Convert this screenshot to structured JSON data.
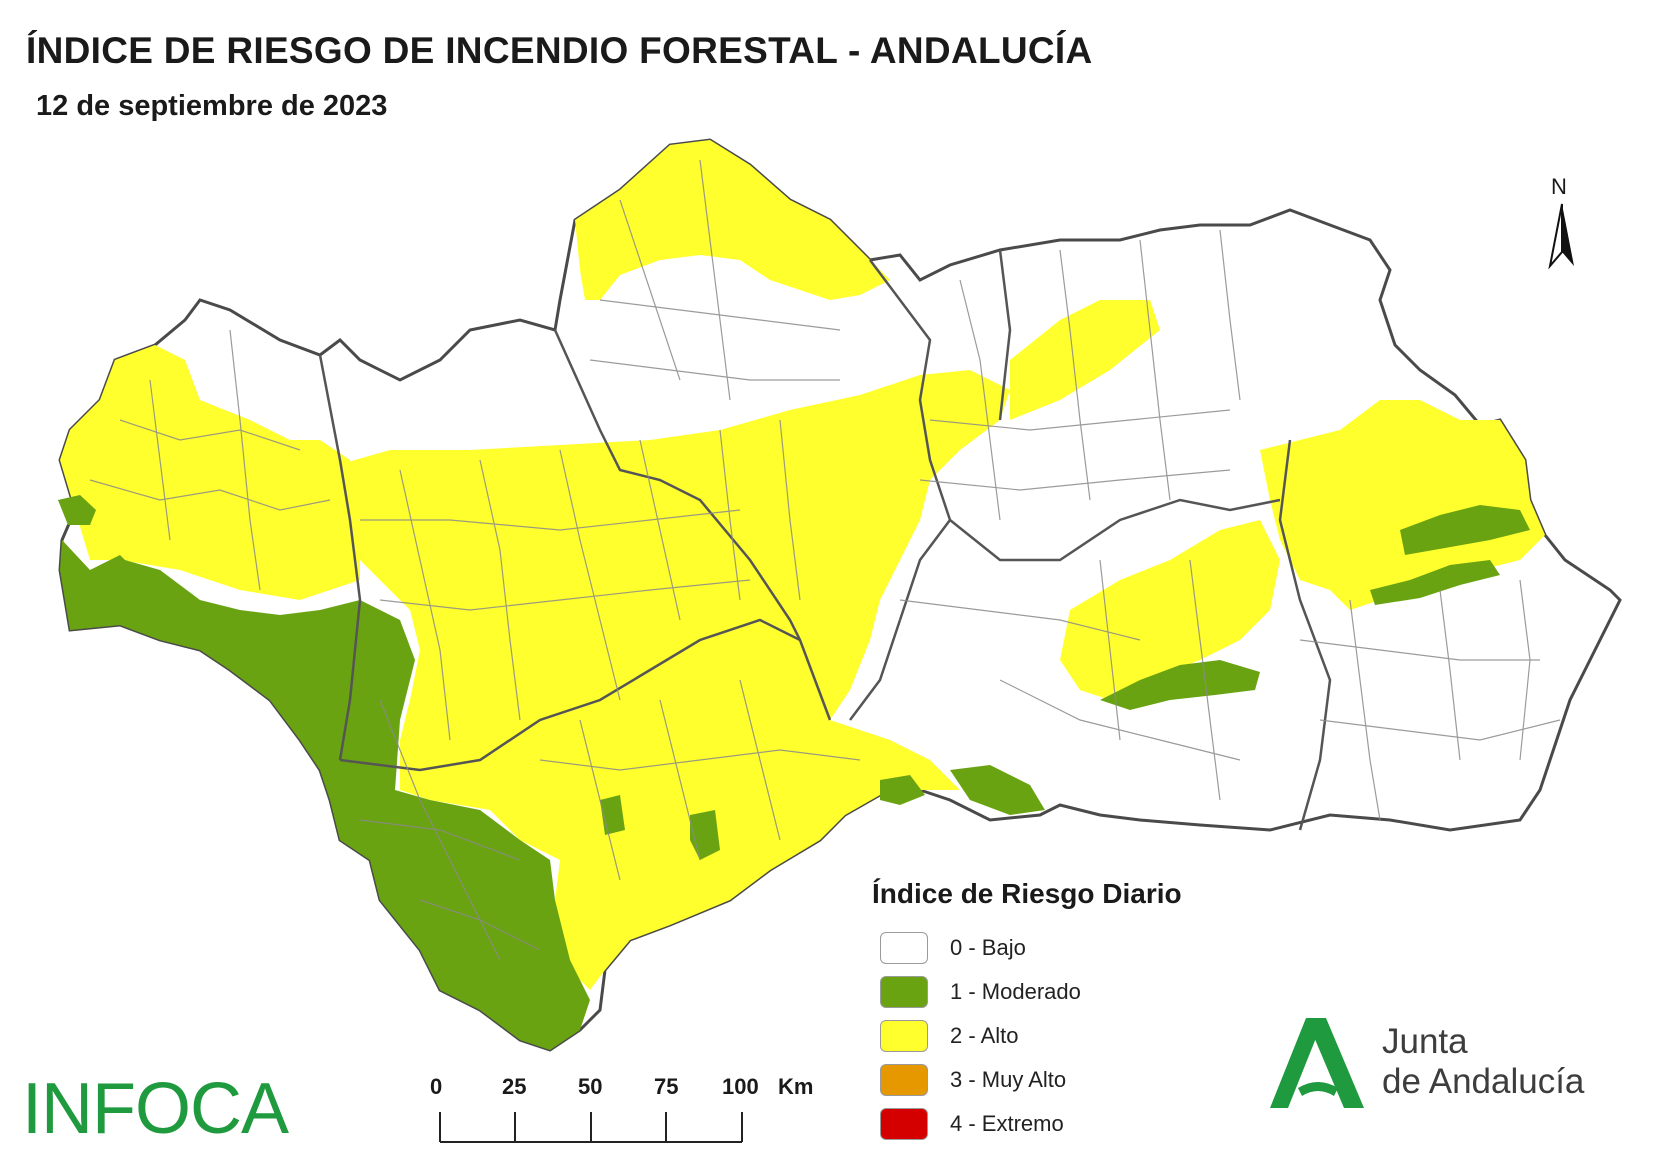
{
  "header": {
    "title": "ÍNDICE DE RIESGO DE INCENDIO FORESTAL - ANDALUCÍA",
    "date": "12 de septiembre de 2023"
  },
  "north_arrow": {
    "label": "N"
  },
  "legend": {
    "title": "Índice de Riesgo Diario",
    "items": [
      {
        "label": "0 - Bajo",
        "color": "#ffffff"
      },
      {
        "label": "1 - Moderado",
        "color": "#6aa312"
      },
      {
        "label": "2 - Alto",
        "color": "#ffff2e"
      },
      {
        "label": "3 - Muy Alto",
        "color": "#e69800"
      },
      {
        "label": "4 - Extremo",
        "color": "#d40000"
      }
    ]
  },
  "scale_bar": {
    "ticks": [
      "0",
      "25",
      "50",
      "75",
      "100"
    ],
    "unit": "Km"
  },
  "branding": {
    "infoca": "INFOCA",
    "junta_line1": "Junta",
    "junta_line2": "de Andalucía",
    "infoca_color": "#1f9a3e",
    "junta_green": "#1f9a3e"
  },
  "map_colors": {
    "outline": "#4a4a4a",
    "inner_border": "#7a7a7a",
    "bajo": "#ffffff",
    "moderado": "#6aa312",
    "alto": "#ffff2e"
  }
}
